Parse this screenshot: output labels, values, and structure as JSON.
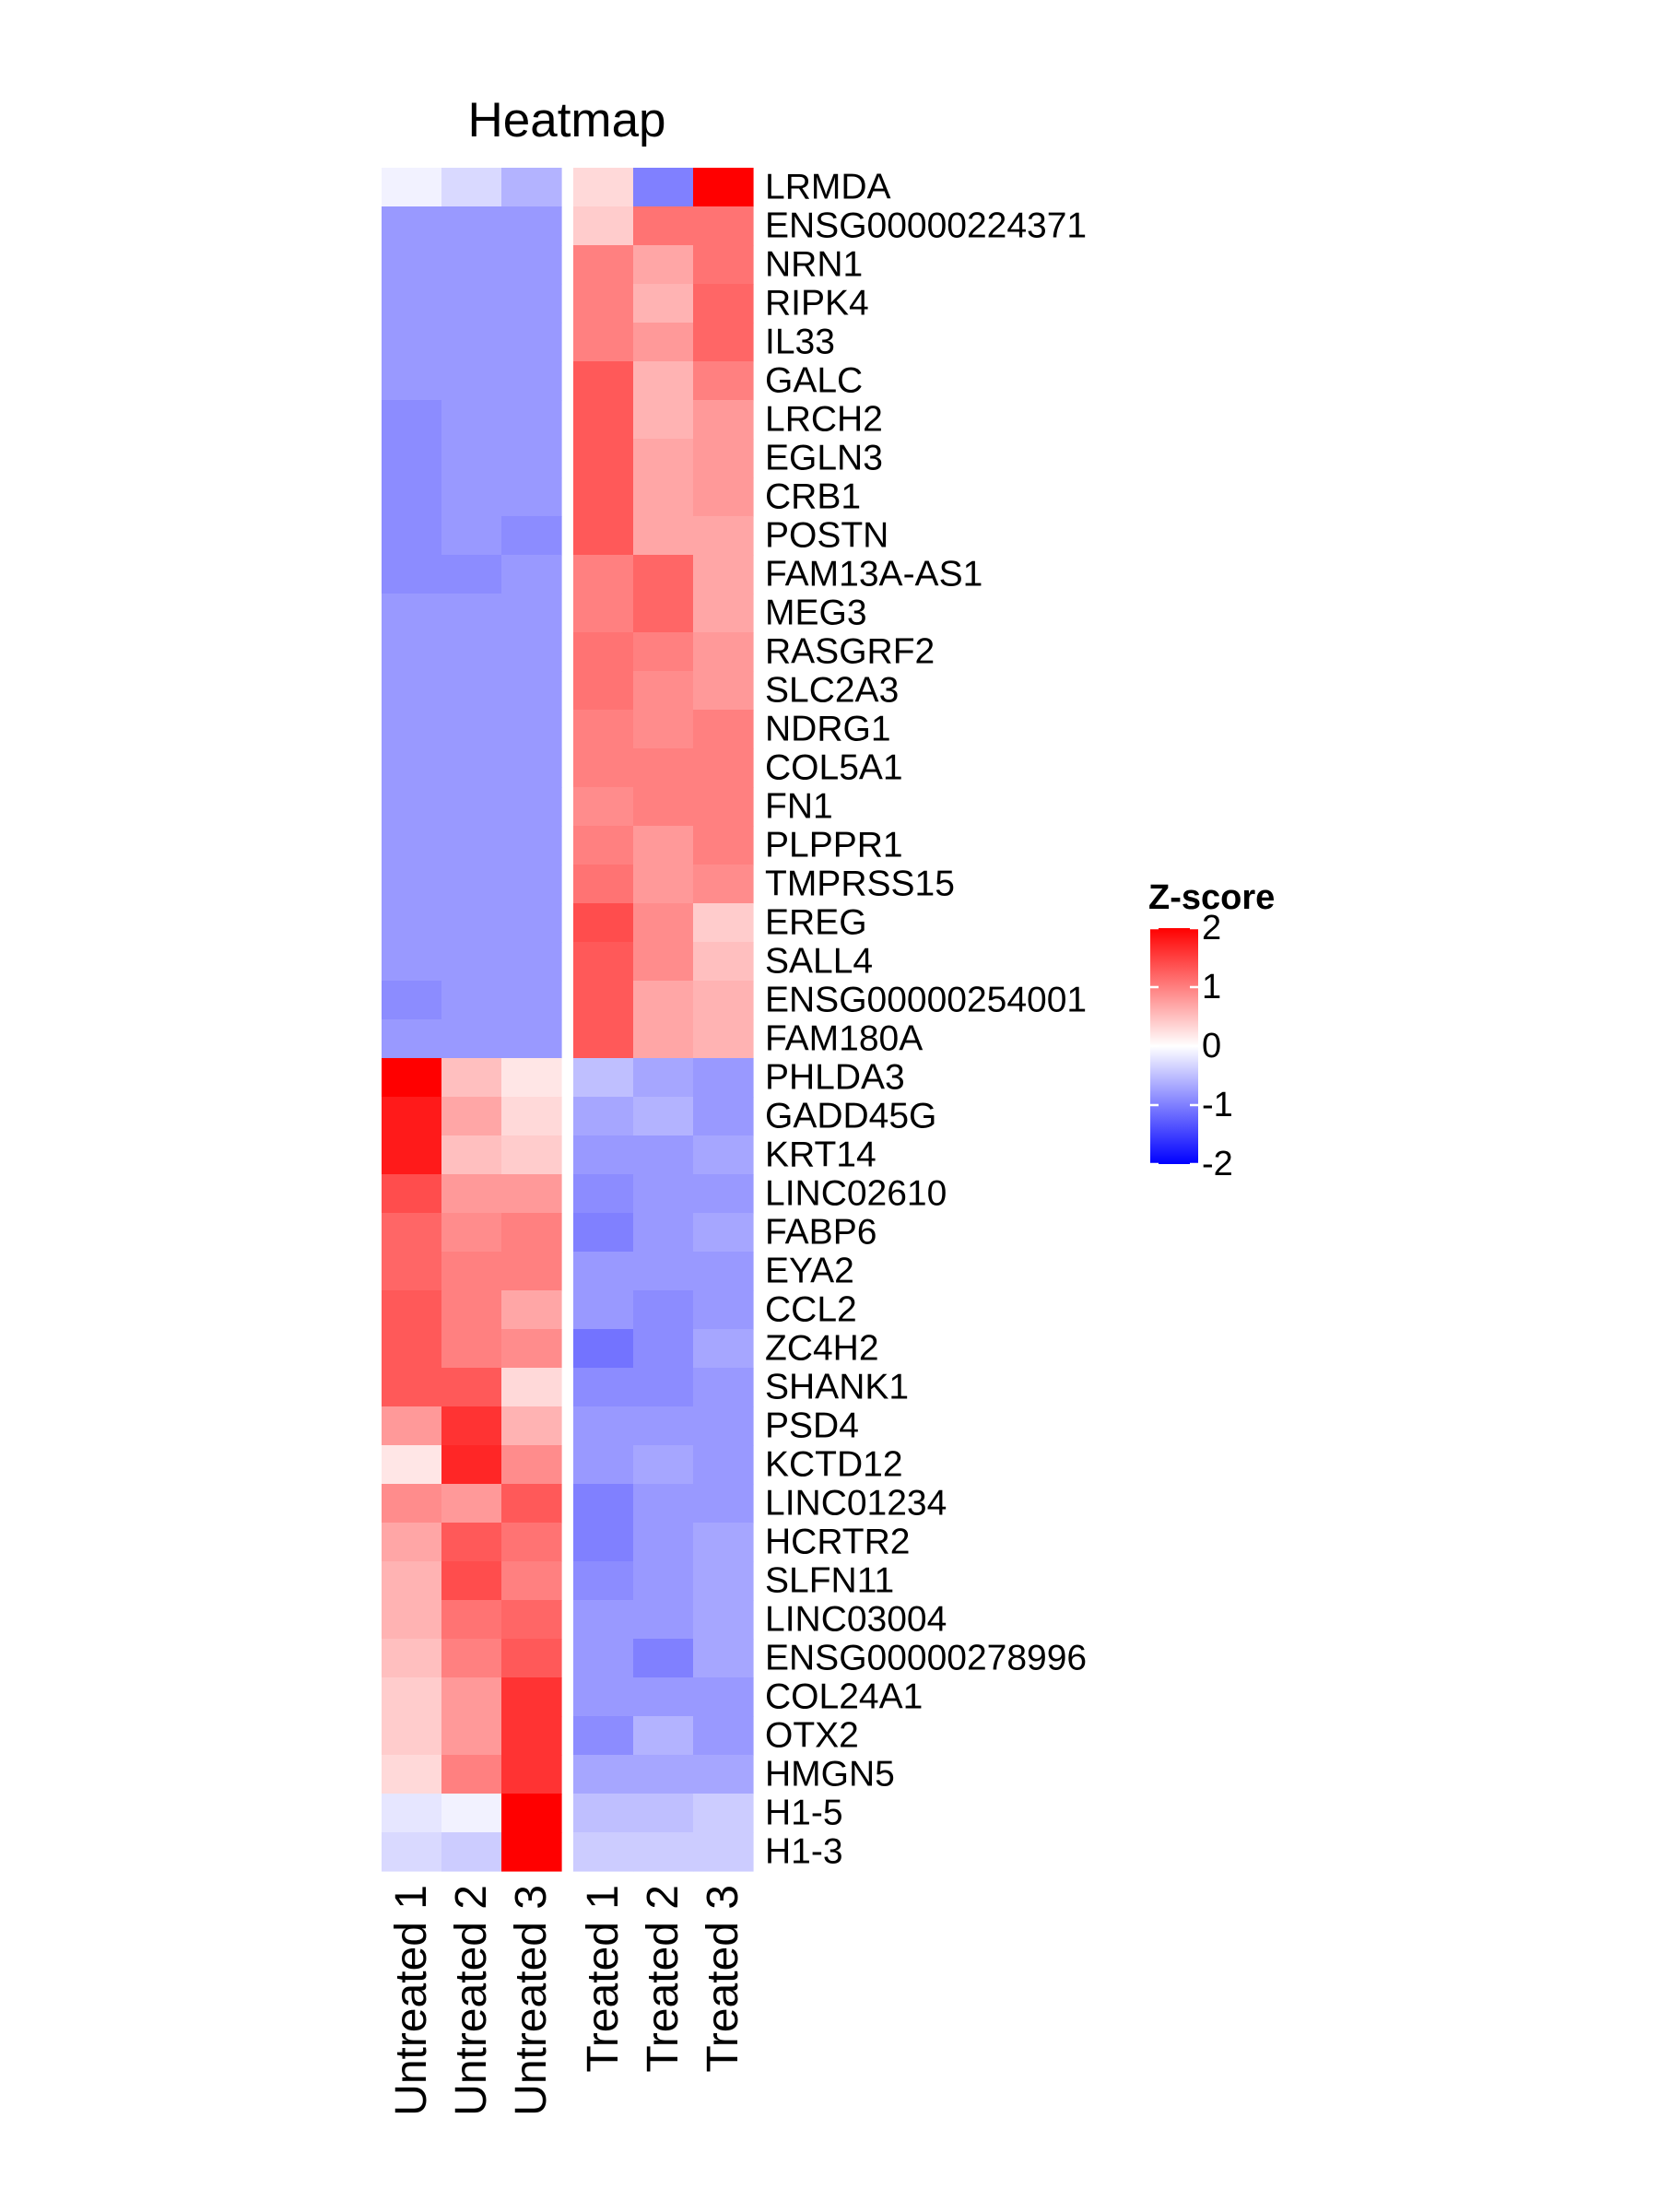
{
  "chart_data": {
    "type": "heatmap",
    "title": "Heatmap",
    "columns": [
      "Untreated 1",
      "Untreated 2",
      "Untreated 3",
      "Treated 1",
      "Treated 2",
      "Treated 3"
    ],
    "column_groups": [
      [
        "Untreated 1",
        "Untreated 2",
        "Untreated 3"
      ],
      [
        "Treated 1",
        "Treated 2",
        "Treated 3"
      ]
    ],
    "rows": [
      "LRMDA",
      "ENSG00000224371",
      "NRN1",
      "RIPK4",
      "IL33",
      "GALC",
      "LRCH2",
      "EGLN3",
      "CRB1",
      "POSTN",
      "FAM13A-AS1",
      "MEG3",
      "RASGRF2",
      "SLC2A3",
      "NDRG1",
      "COL5A1",
      "FN1",
      "PLPPR1",
      "TMPRSS15",
      "EREG",
      "SALL4",
      "ENSG00000254001",
      "FAM180A",
      "PHLDA3",
      "GADD45G",
      "KRT14",
      "LINC02610",
      "FABP6",
      "EYA2",
      "CCL2",
      "ZC4H2",
      "SHANK1",
      "PSD4",
      "KCTD12",
      "LINC01234",
      "HCRTR2",
      "SLFN11",
      "LINC03004",
      "ENSG00000278996",
      "COL24A1",
      "OTX2",
      "HMGN5",
      "H1-5",
      "H1-3"
    ],
    "row_groups": [
      23,
      21
    ],
    "values": [
      [
        -0.1,
        -0.3,
        -0.6,
        0.3,
        -1.0,
        2.0
      ],
      [
        -0.8,
        -0.8,
        -0.8,
        0.4,
        1.1,
        1.1
      ],
      [
        -0.8,
        -0.8,
        -0.8,
        1.0,
        0.7,
        1.1
      ],
      [
        -0.8,
        -0.8,
        -0.8,
        1.0,
        0.6,
        1.2
      ],
      [
        -0.8,
        -0.8,
        -0.8,
        1.0,
        0.8,
        1.2
      ],
      [
        -0.8,
        -0.8,
        -0.8,
        1.3,
        0.6,
        1.0
      ],
      [
        -0.9,
        -0.8,
        -0.8,
        1.3,
        0.6,
        0.8
      ],
      [
        -0.9,
        -0.8,
        -0.8,
        1.3,
        0.7,
        0.8
      ],
      [
        -0.9,
        -0.8,
        -0.8,
        1.3,
        0.7,
        0.8
      ],
      [
        -0.9,
        -0.8,
        -0.9,
        1.3,
        0.7,
        0.7
      ],
      [
        -0.9,
        -0.9,
        -0.8,
        1.0,
        1.2,
        0.7
      ],
      [
        -0.8,
        -0.8,
        -0.8,
        1.0,
        1.2,
        0.7
      ],
      [
        -0.8,
        -0.8,
        -0.8,
        1.1,
        1.0,
        0.8
      ],
      [
        -0.8,
        -0.8,
        -0.8,
        1.1,
        0.9,
        0.8
      ],
      [
        -0.8,
        -0.8,
        -0.8,
        1.0,
        0.9,
        1.0
      ],
      [
        -0.8,
        -0.8,
        -0.8,
        1.0,
        1.0,
        1.0
      ],
      [
        -0.8,
        -0.8,
        -0.8,
        0.9,
        1.0,
        1.0
      ],
      [
        -0.8,
        -0.8,
        -0.8,
        1.0,
        0.8,
        1.0
      ],
      [
        -0.8,
        -0.8,
        -0.8,
        1.1,
        0.8,
        0.9
      ],
      [
        -0.8,
        -0.8,
        -0.8,
        1.4,
        0.9,
        0.4
      ],
      [
        -0.8,
        -0.8,
        -0.8,
        1.3,
        0.9,
        0.5
      ],
      [
        -0.9,
        -0.8,
        -0.8,
        1.3,
        0.7,
        0.6
      ],
      [
        -0.8,
        -0.8,
        -0.8,
        1.3,
        0.7,
        0.6
      ],
      [
        2.0,
        0.5,
        0.2,
        -0.5,
        -0.7,
        -0.8
      ],
      [
        1.8,
        0.7,
        0.3,
        -0.7,
        -0.6,
        -0.8
      ],
      [
        1.8,
        0.5,
        0.4,
        -0.8,
        -0.8,
        -0.7
      ],
      [
        1.4,
        0.8,
        0.8,
        -0.9,
        -0.8,
        -0.8
      ],
      [
        1.2,
        0.9,
        1.0,
        -1.0,
        -0.8,
        -0.7
      ],
      [
        1.2,
        1.0,
        1.0,
        -0.8,
        -0.8,
        -0.8
      ],
      [
        1.3,
        1.0,
        0.7,
        -0.8,
        -0.9,
        -0.8
      ],
      [
        1.3,
        1.0,
        0.9,
        -1.1,
        -0.9,
        -0.7
      ],
      [
        1.3,
        1.3,
        0.3,
        -0.9,
        -0.9,
        -0.8
      ],
      [
        0.8,
        1.6,
        0.6,
        -0.8,
        -0.8,
        -0.8
      ],
      [
        0.2,
        1.7,
        0.9,
        -0.8,
        -0.7,
        -0.8
      ],
      [
        0.9,
        0.8,
        1.3,
        -1.0,
        -0.8,
        -0.8
      ],
      [
        0.7,
        1.3,
        1.1,
        -1.0,
        -0.8,
        -0.7
      ],
      [
        0.6,
        1.4,
        1.0,
        -0.9,
        -0.8,
        -0.7
      ],
      [
        0.6,
        1.1,
        1.2,
        -0.8,
        -0.8,
        -0.7
      ],
      [
        0.5,
        1.0,
        1.3,
        -0.8,
        -1.0,
        -0.7
      ],
      [
        0.4,
        0.8,
        1.6,
        -0.8,
        -0.8,
        -0.8
      ],
      [
        0.4,
        0.8,
        1.6,
        -0.9,
        -0.6,
        -0.8
      ],
      [
        0.3,
        1.0,
        1.6,
        -0.7,
        -0.7,
        -0.7
      ],
      [
        -0.2,
        -0.1,
        2.0,
        -0.5,
        -0.5,
        -0.4
      ],
      [
        -0.3,
        -0.4,
        2.0,
        -0.4,
        -0.4,
        -0.4
      ]
    ],
    "color_scale": {
      "title": "Z-score",
      "range": [
        -2,
        2
      ],
      "ticks": [
        2,
        1,
        0,
        -1,
        -2
      ],
      "low_color": "#0000ff",
      "mid_color": "#ffffff",
      "high_color": "#ff0000",
      "legend_position": "right"
    }
  }
}
